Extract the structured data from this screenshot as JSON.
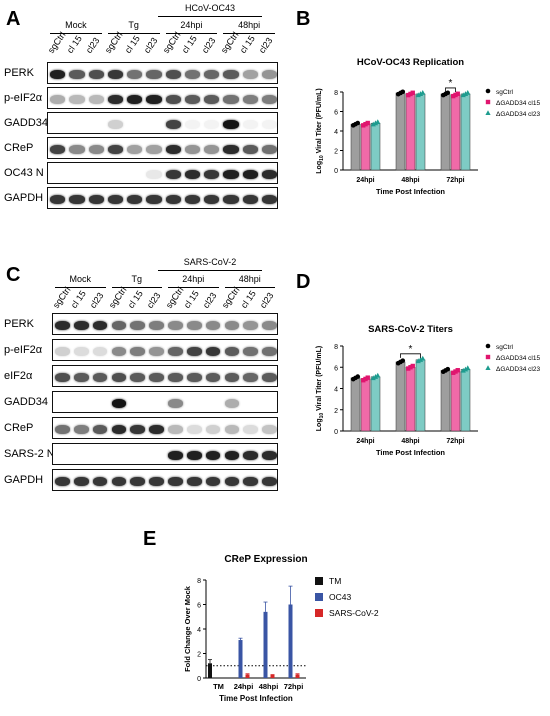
{
  "panels": {
    "A": {
      "letter": "A",
      "header_group": "HCoV-OC43",
      "groups": [
        "Mock",
        "Tg",
        "24hpi",
        "48hpi"
      ],
      "lanes": [
        "sgCtrl",
        "cl 15",
        "cl23",
        "sgCtrl",
        "cl 15",
        "cl23",
        "sgCtrl",
        "cl 15",
        "cl23",
        "sgCtrl",
        "cl 15",
        "cl23"
      ],
      "rows": [
        "PERK",
        "p-eIF2α",
        "GADD34",
        "CReP",
        "OC43 N",
        "GAPDH"
      ]
    },
    "C": {
      "letter": "C",
      "header_group": "SARS-CoV-2",
      "groups": [
        "Mock",
        "Tg",
        "24hpi",
        "48hpi"
      ],
      "lanes": [
        "sgCtrl",
        "cl 15",
        "cl23",
        "sgCtrl",
        "cl 15",
        "cl23",
        "sgCtrl",
        "cl 15",
        "cl23",
        "sgCtrl",
        "cl 15",
        "cl23"
      ],
      "rows": [
        "PERK",
        "p-eIF2α",
        "eIF2α",
        "GADD34",
        "CReP",
        "SARS-2 N",
        "GAPDH"
      ]
    },
    "B": {
      "letter": "B"
    },
    "D": {
      "letter": "D"
    },
    "E": {
      "letter": "E"
    }
  },
  "chart_data": [
    {
      "id": "B",
      "type": "bar",
      "title": "HCoV-OC43 Replication",
      "xlabel": "Time Post Infection",
      "ylabel": "Log10 Viral Titer (PFU/mL)",
      "ylabel_main": "Log",
      "ylabel_sub": "10",
      "ylabel_rest": " Viral Titer (PFU/mL)",
      "categories": [
        "24hpi",
        "48hpi",
        "72hpi"
      ],
      "yticks": [
        0,
        2,
        4,
        6,
        8
      ],
      "ylim": [
        0,
        8
      ],
      "series": [
        {
          "name": "sgCtrl",
          "color": "#9e9e9e",
          "marker_color": "#000000",
          "marker": "circle",
          "values": [
            4.7,
            7.9,
            7.8
          ]
        },
        {
          "name": "ΔGADD34 cl15",
          "color": "#f06aa8",
          "marker_color": "#e0156e",
          "marker": "square",
          "values": [
            4.7,
            7.8,
            7.7
          ]
        },
        {
          "name": "ΔGADD34 cl23",
          "color": "#7ecbc4",
          "marker_color": "#1e9c8f",
          "marker": "triangle",
          "values": [
            4.8,
            7.8,
            7.8
          ]
        }
      ],
      "significance": {
        "label": "*",
        "category": "72hpi",
        "from_series": 0,
        "to_series": 1
      },
      "legend_position": "right"
    },
    {
      "id": "D",
      "type": "bar",
      "title": "SARS-CoV-2 Titers",
      "xlabel": "Time Post Infection",
      "ylabel": "Log10 Viral Titer (PFU/mL)",
      "ylabel_main": "Log",
      "ylabel_sub": "10",
      "ylabel_rest": " Viral Titer (PFU/mL)",
      "categories": [
        "24hpi",
        "48hpi",
        "72hpi"
      ],
      "yticks": [
        0,
        2,
        4,
        6,
        8
      ],
      "ylim": [
        0,
        8
      ],
      "series": [
        {
          "name": "sgCtrl",
          "color": "#9e9e9e",
          "marker_color": "#000000",
          "marker": "circle",
          "values": [
            5.0,
            6.5,
            5.7
          ]
        },
        {
          "name": "ΔGADD34 cl15",
          "color": "#f06aa8",
          "marker_color": "#e0156e",
          "marker": "square",
          "values": [
            4.9,
            6.0,
            5.6
          ]
        },
        {
          "name": "ΔGADD34 cl23",
          "color": "#7ecbc4",
          "marker_color": "#1e9c8f",
          "marker": "triangle",
          "values": [
            5.1,
            6.7,
            5.8
          ]
        }
      ],
      "significance": {
        "label": "*",
        "category": "48hpi",
        "from_series": 0,
        "to_series": 2
      },
      "legend_position": "right"
    },
    {
      "id": "E",
      "type": "bar",
      "title": "CReP Expression",
      "xlabel": "Time Post Infection",
      "ylabel": "Fold Change Over Mock",
      "categories": [
        "TM",
        "24hpi",
        "48hpi",
        "72hpi"
      ],
      "yticks": [
        0,
        2,
        4,
        6,
        8
      ],
      "ylim": [
        0,
        8
      ],
      "reference_line": 1,
      "series": [
        {
          "name": "TM",
          "color": "#111111",
          "values": [
            1.2,
            null,
            null,
            null
          ],
          "errors": [
            0.3,
            null,
            null,
            null
          ]
        },
        {
          "name": "OC43",
          "color": "#3a55a4",
          "values": [
            null,
            3.1,
            5.4,
            6.0
          ],
          "errors": [
            null,
            0.15,
            0.8,
            1.5
          ]
        },
        {
          "name": "SARS-CoV-2",
          "color": "#d62828",
          "values": [
            null,
            0.3,
            0.25,
            0.3
          ],
          "errors": [
            null,
            0.05,
            0.03,
            0.05
          ]
        }
      ],
      "legend_position": "right"
    }
  ]
}
